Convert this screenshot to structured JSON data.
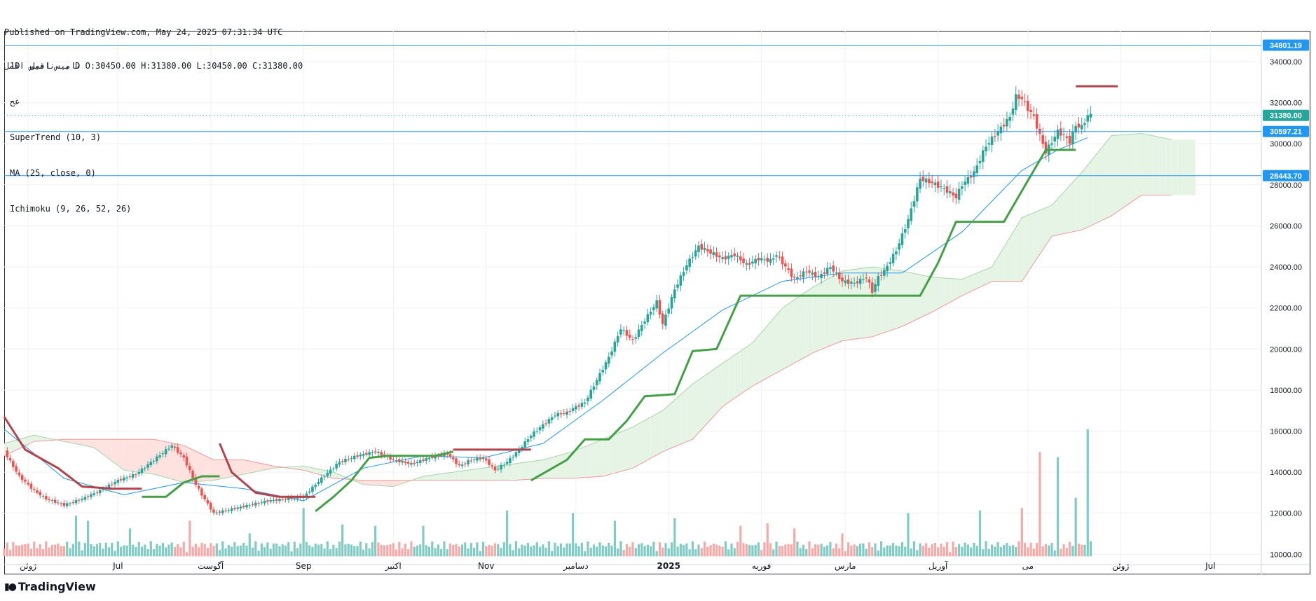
{
  "header": {
    "published": "Published on TradingView.com, May 24, 2025 07:31:34 UTC",
    "ohlc": "نامیس اقمل  , D O:30450.00 H:31380.00 L:30450.00 C:31380.00"
  },
  "legend": {
    "line1": "1D  نامیس اقمل",
    "line2": "عح",
    "supertrend": "SuperTrend (10, 3)",
    "ma": "MA (25, close, 0)",
    "ichimoku": "Ichimoku (9, 26, 52, 26)"
  },
  "footer": {
    "brand": "TradingView",
    "logo_icon": "tv-logo-icon"
  },
  "colors": {
    "up": "#26a69a",
    "down": "#ef5350",
    "supertrend_up": "#43a047",
    "supertrend_down": "#b2434a",
    "ma": "#2196f3",
    "cloud_bull": "#e6f4e6",
    "cloud_bear": "#fde2e0",
    "hline": "#2196f3",
    "price_badge": "#26a69a",
    "grid": "#eef0f3"
  },
  "chart_data": {
    "type": "candlestick",
    "y_axis": {
      "min": 9500,
      "max": 35500,
      "ticks": [
        "10000.00",
        "12000.00",
        "14000.00",
        "16000.00",
        "18000.00",
        "20000.00",
        "22000.00",
        "24000.00",
        "26000.00",
        "28000.00",
        "30000.00",
        "32000.00",
        "34000.00"
      ]
    },
    "x_axis": {
      "labels": [
        {
          "label": "ژوئن",
          "day": 8
        },
        {
          "label": "Jul",
          "day": 38
        },
        {
          "label": "آگوست",
          "day": 69
        },
        {
          "label": "Sep",
          "day": 100
        },
        {
          "label": "اکتبر",
          "day": 130
        },
        {
          "label": "Nov",
          "day": 161
        },
        {
          "label": "دسامبر",
          "day": 191
        },
        {
          "label": "2025",
          "day": 222
        },
        {
          "label": "فوریه",
          "day": 253
        },
        {
          "label": "مارس",
          "day": 281
        },
        {
          "label": "آوریل",
          "day": 312
        },
        {
          "label": "می",
          "day": 342
        },
        {
          "label": "ژوئن",
          "day": 373
        },
        {
          "label": "Jul",
          "day": 403
        }
      ],
      "day_range": [
        0,
        420
      ]
    },
    "horizontal_lines": [
      {
        "value": 34801.19,
        "label": "34801.19"
      },
      {
        "value": 30597.21,
        "label": "30597.21"
      },
      {
        "value": 28443.7,
        "label": "28443.70"
      }
    ],
    "last_price": {
      "value": 31380.0,
      "label": "31380.00"
    },
    "close_path": [
      [
        0,
        15000
      ],
      [
        5,
        13800
      ],
      [
        10,
        13100
      ],
      [
        14,
        12700
      ],
      [
        20,
        12400
      ],
      [
        26,
        12700
      ],
      [
        32,
        13100
      ],
      [
        38,
        13600
      ],
      [
        44,
        13900
      ],
      [
        50,
        14600
      ],
      [
        56,
        15300
      ],
      [
        60,
        14700
      ],
      [
        64,
        13400
      ],
      [
        66,
        12900
      ],
      [
        70,
        12000
      ],
      [
        76,
        12200
      ],
      [
        82,
        12400
      ],
      [
        88,
        12600
      ],
      [
        94,
        12700
      ],
      [
        100,
        12800
      ],
      [
        106,
        13700
      ],
      [
        112,
        14500
      ],
      [
        118,
        14800
      ],
      [
        124,
        15000
      ],
      [
        130,
        14600
      ],
      [
        136,
        14400
      ],
      [
        142,
        14700
      ],
      [
        148,
        14900
      ],
      [
        152,
        14300
      ],
      [
        156,
        14600
      ],
      [
        160,
        14700
      ],
      [
        164,
        14100
      ],
      [
        168,
        14500
      ],
      [
        172,
        15100
      ],
      [
        176,
        15800
      ],
      [
        180,
        16300
      ],
      [
        184,
        16800
      ],
      [
        188,
        16900
      ],
      [
        190,
        17100
      ],
      [
        194,
        17400
      ],
      [
        198,
        18500
      ],
      [
        202,
        19600
      ],
      [
        206,
        21000
      ],
      [
        210,
        20400
      ],
      [
        214,
        21400
      ],
      [
        218,
        22300
      ],
      [
        220,
        21200
      ],
      [
        224,
        22900
      ],
      [
        228,
        24100
      ],
      [
        232,
        25000
      ],
      [
        236,
        24700
      ],
      [
        240,
        24400
      ],
      [
        244,
        24600
      ],
      [
        248,
        24100
      ],
      [
        252,
        24400
      ],
      [
        256,
        24300
      ],
      [
        258,
        24600
      ],
      [
        260,
        24200
      ],
      [
        264,
        23400
      ],
      [
        268,
        23800
      ],
      [
        272,
        23500
      ],
      [
        276,
        24000
      ],
      [
        280,
        23300
      ],
      [
        284,
        23200
      ],
      [
        288,
        23500
      ],
      [
        290,
        22800
      ],
      [
        292,
        23500
      ],
      [
        294,
        23800
      ],
      [
        298,
        24800
      ],
      [
        302,
        26300
      ],
      [
        306,
        28300
      ],
      [
        310,
        28100
      ],
      [
        314,
        27800
      ],
      [
        318,
        27400
      ],
      [
        320,
        28000
      ],
      [
        324,
        28600
      ],
      [
        328,
        29900
      ],
      [
        332,
        30600
      ],
      [
        336,
        31300
      ],
      [
        338,
        32300
      ],
      [
        340,
        32200
      ],
      [
        342,
        31700
      ],
      [
        344,
        31300
      ],
      [
        346,
        30400
      ],
      [
        348,
        29600
      ],
      [
        350,
        30100
      ],
      [
        352,
        30600
      ],
      [
        354,
        30400
      ],
      [
        356,
        30100
      ],
      [
        358,
        30900
      ],
      [
        360,
        30800
      ],
      [
        362,
        31380
      ]
    ],
    "candle_range": [
      0,
      363
    ],
    "supertrend": [
      {
        "color": "down",
        "points": [
          [
            0,
            16700
          ],
          [
            7,
            15100
          ],
          [
            18,
            14200
          ],
          [
            26,
            13300
          ],
          [
            36,
            13200
          ],
          [
            46,
            13200
          ]
        ]
      },
      {
        "color": "up",
        "points": [
          [
            46,
            12800
          ],
          [
            54,
            12800
          ],
          [
            60,
            13500
          ],
          [
            66,
            13800
          ],
          [
            72,
            13800
          ]
        ]
      },
      {
        "color": "down",
        "points": [
          [
            72,
            15400
          ],
          [
            76,
            14000
          ],
          [
            84,
            13000
          ],
          [
            92,
            12800
          ],
          [
            104,
            12800
          ]
        ]
      },
      {
        "color": "up",
        "points": [
          [
            104,
            12100
          ],
          [
            110,
            12800
          ],
          [
            116,
            13600
          ],
          [
            122,
            14700
          ],
          [
            128,
            14800
          ],
          [
            144,
            14800
          ],
          [
            150,
            15000
          ]
        ]
      },
      {
        "color": "down",
        "points": [
          [
            150,
            15100
          ],
          [
            176,
            15100
          ]
        ]
      },
      {
        "color": "up",
        "points": [
          [
            176,
            13600
          ],
          [
            182,
            14100
          ],
          [
            188,
            14600
          ],
          [
            194,
            15600
          ],
          [
            202,
            15600
          ],
          [
            208,
            16500
          ],
          [
            214,
            17700
          ],
          [
            224,
            17800
          ],
          [
            230,
            19900
          ],
          [
            238,
            20000
          ],
          [
            242,
            21300
          ],
          [
            246,
            22600
          ],
          [
            276,
            22600
          ],
          [
            306,
            22600
          ],
          [
            312,
            24200
          ],
          [
            318,
            26200
          ],
          [
            334,
            26200
          ],
          [
            342,
            28200
          ],
          [
            348,
            29700
          ],
          [
            358,
            29700
          ]
        ]
      },
      {
        "color": "down",
        "points": [
          [
            358,
            32800
          ],
          [
            372,
            32800
          ]
        ]
      }
    ],
    "ma": [
      [
        0,
        16100
      ],
      [
        20,
        13700
      ],
      [
        40,
        12900
      ],
      [
        60,
        13500
      ],
      [
        80,
        13200
      ],
      [
        100,
        12600
      ],
      [
        120,
        14200
      ],
      [
        140,
        14800
      ],
      [
        160,
        14700
      ],
      [
        180,
        15400
      ],
      [
        200,
        17500
      ],
      [
        220,
        19800
      ],
      [
        240,
        21900
      ],
      [
        260,
        23300
      ],
      [
        280,
        23700
      ],
      [
        300,
        23700
      ],
      [
        320,
        25700
      ],
      [
        340,
        28700
      ],
      [
        352,
        29700
      ],
      [
        362,
        30300
      ]
    ],
    "ichimoku_span_a": [
      [
        0,
        15400
      ],
      [
        10,
        15800
      ],
      [
        20,
        15500
      ],
      [
        30,
        15200
      ],
      [
        40,
        14100
      ],
      [
        50,
        13900
      ],
      [
        60,
        13500
      ],
      [
        70,
        13600
      ],
      [
        80,
        13900
      ],
      [
        90,
        14200
      ],
      [
        100,
        14300
      ],
      [
        110,
        14000
      ],
      [
        120,
        13400
      ],
      [
        130,
        13300
      ],
      [
        140,
        13800
      ],
      [
        150,
        14000
      ],
      [
        160,
        14200
      ],
      [
        170,
        14400
      ],
      [
        180,
        14600
      ],
      [
        190,
        15000
      ],
      [
        200,
        15600
      ],
      [
        210,
        16200
      ],
      [
        220,
        17000
      ],
      [
        230,
        18300
      ],
      [
        240,
        19300
      ],
      [
        250,
        20300
      ],
      [
        260,
        22000
      ],
      [
        270,
        23000
      ],
      [
        280,
        23800
      ],
      [
        290,
        24000
      ],
      [
        300,
        23800
      ],
      [
        310,
        23500
      ],
      [
        320,
        23400
      ],
      [
        330,
        24000
      ],
      [
        340,
        26400
      ],
      [
        350,
        27000
      ],
      [
        360,
        28600
      ],
      [
        370,
        30400
      ],
      [
        380,
        30500
      ],
      [
        390,
        30200
      ],
      [
        400,
        30200
      ]
    ],
    "ichimoku_span_b": [
      [
        0,
        14800
      ],
      [
        10,
        15500
      ],
      [
        20,
        15600
      ],
      [
        30,
        15600
      ],
      [
        40,
        15600
      ],
      [
        50,
        15600
      ],
      [
        60,
        15300
      ],
      [
        70,
        14600
      ],
      [
        80,
        14600
      ],
      [
        90,
        14300
      ],
      [
        100,
        14100
      ],
      [
        110,
        13700
      ],
      [
        120,
        13600
      ],
      [
        130,
        13600
      ],
      [
        140,
        13600
      ],
      [
        150,
        13600
      ],
      [
        160,
        13600
      ],
      [
        170,
        13600
      ],
      [
        180,
        13700
      ],
      [
        190,
        13700
      ],
      [
        200,
        13800
      ],
      [
        210,
        14200
      ],
      [
        220,
        15000
      ],
      [
        230,
        15600
      ],
      [
        240,
        17200
      ],
      [
        250,
        18200
      ],
      [
        260,
        19000
      ],
      [
        270,
        19800
      ],
      [
        280,
        20400
      ],
      [
        290,
        20600
      ],
      [
        300,
        21100
      ],
      [
        310,
        21800
      ],
      [
        320,
        22600
      ],
      [
        330,
        23300
      ],
      [
        340,
        23300
      ],
      [
        350,
        25500
      ],
      [
        360,
        25800
      ],
      [
        370,
        26500
      ],
      [
        380,
        27500
      ],
      [
        390,
        27500
      ],
      [
        400,
        27500
      ]
    ],
    "ichimoku_end": 398,
    "volume": {
      "base": 9900,
      "max_height": 6200,
      "spikes": [
        [
          24,
          0.32
        ],
        [
          28,
          0.28
        ],
        [
          42,
          0.22
        ],
        [
          62,
          0.28
        ],
        [
          82,
          0.18
        ],
        [
          100,
          0.38
        ],
        [
          113,
          0.25
        ],
        [
          124,
          0.24
        ],
        [
          140,
          0.24
        ],
        [
          168,
          0.36
        ],
        [
          190,
          0.34
        ],
        [
          204,
          0.28
        ],
        [
          224,
          0.3
        ],
        [
          246,
          0.24
        ],
        [
          255,
          0.26
        ],
        [
          264,
          0.22
        ],
        [
          280,
          0.18
        ],
        [
          302,
          0.34
        ],
        [
          326,
          0.36
        ],
        [
          340,
          0.38
        ],
        [
          346,
          0.82
        ],
        [
          352,
          0.78
        ],
        [
          358,
          0.46
        ],
        [
          362,
          1.0
        ]
      ]
    }
  }
}
